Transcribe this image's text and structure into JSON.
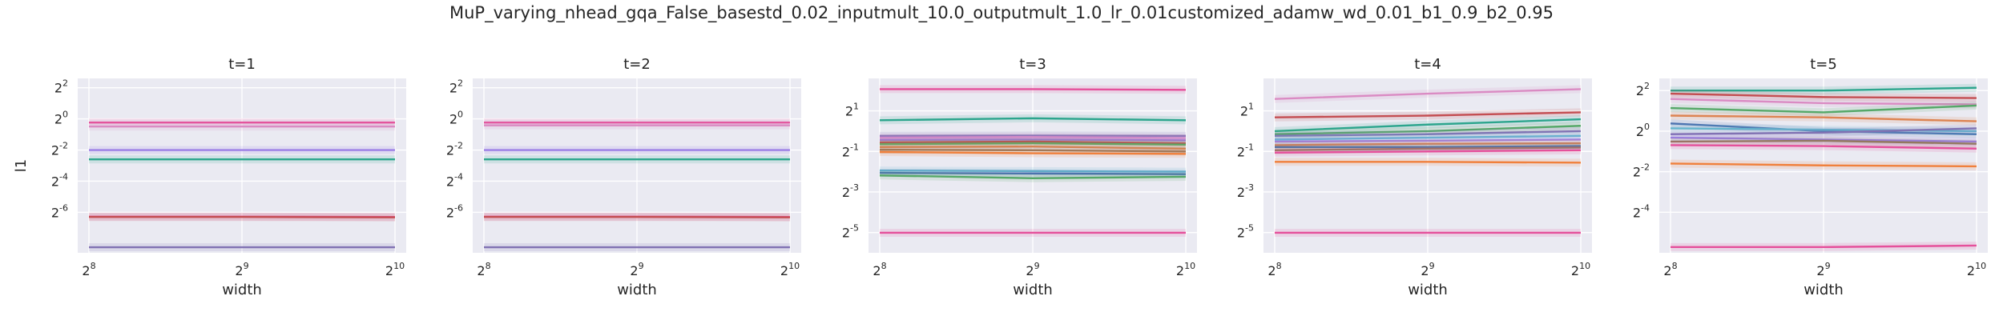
{
  "suptitle": "MuP_varying_nhead_gqa_False_basestd_0.02_inputmult_10.0_outputmult_1.0_lr_0.01customized_adamw_wd_0.01_b1_0.9_b2_0.95",
  "palette": [
    "#4c72b0",
    "#dd8452",
    "#55a868",
    "#c44e52",
    "#8172b3",
    "#937860",
    "#da8bc3",
    "#8c8c8c",
    "#ccb974",
    "#64b5cd",
    "#e5509b",
    "#2ca58d",
    "#9b7fe6",
    "#f0803c"
  ],
  "chart_data": [
    {
      "type": "line",
      "title": "t=1",
      "xlabel": "width",
      "ylabel": "l1",
      "xscale": "log2",
      "yscale": "log2",
      "x": [
        256,
        512,
        1024
      ],
      "xticks": [
        {
          "base": "2",
          "exp": "8"
        },
        {
          "base": "2",
          "exp": "9"
        },
        {
          "base": "2",
          "exp": "10"
        }
      ],
      "yticks": [
        {
          "base": "2",
          "exp": "2"
        },
        {
          "base": "2",
          "exp": "0"
        },
        {
          "base": "2",
          "exp": "-2"
        },
        {
          "base": "2",
          "exp": "-4"
        },
        {
          "base": "2",
          "exp": "-6"
        }
      ],
      "ytick_exps": [
        2,
        0,
        -2,
        -4,
        -6
      ],
      "ylim_log2": [
        -8.6,
        2.6
      ],
      "grid": true,
      "series": [
        {
          "color": "#e5509b",
          "values": [
            0.85,
            0.85,
            0.85
          ]
        },
        {
          "color": "#da8bc3",
          "values": [
            0.71,
            0.71,
            0.71
          ]
        },
        {
          "color": "#9b7fe6",
          "values": [
            0.25,
            0.25,
            0.25
          ]
        },
        {
          "color": "#2ca58d",
          "values": [
            0.165,
            0.165,
            0.165
          ]
        },
        {
          "color": "#e5509b",
          "values": [
            0.0129,
            0.0129,
            0.0127
          ]
        },
        {
          "color": "#c44e52",
          "values": [
            0.0127,
            0.0127,
            0.0125
          ]
        },
        {
          "color": "#8172b3",
          "values": [
            0.0033,
            0.0033,
            0.0033
          ]
        }
      ]
    },
    {
      "type": "line",
      "title": "t=2",
      "xlabel": "width",
      "ylabel": "",
      "xscale": "log2",
      "yscale": "log2",
      "x": [
        256,
        512,
        1024
      ],
      "xticks": [
        {
          "base": "2",
          "exp": "8"
        },
        {
          "base": "2",
          "exp": "9"
        },
        {
          "base": "2",
          "exp": "10"
        }
      ],
      "yticks": [
        {
          "base": "2",
          "exp": "2"
        },
        {
          "base": "2",
          "exp": "0"
        },
        {
          "base": "2",
          "exp": "-2"
        },
        {
          "base": "2",
          "exp": "-4"
        },
        {
          "base": "2",
          "exp": "-6"
        }
      ],
      "ytick_exps": [
        2,
        0,
        -2,
        -4,
        -6
      ],
      "ylim_log2": [
        -8.6,
        2.6
      ],
      "grid": true,
      "series": [
        {
          "color": "#e5509b",
          "values": [
            0.85,
            0.85,
            0.85
          ]
        },
        {
          "color": "#da8bc3",
          "values": [
            0.75,
            0.75,
            0.75
          ]
        },
        {
          "color": "#9b7fe6",
          "values": [
            0.25,
            0.25,
            0.25
          ]
        },
        {
          "color": "#2ca58d",
          "values": [
            0.165,
            0.165,
            0.165
          ]
        },
        {
          "color": "#e5509b",
          "values": [
            0.0129,
            0.0129,
            0.0127
          ]
        },
        {
          "color": "#c44e52",
          "values": [
            0.0127,
            0.0127,
            0.0125
          ]
        },
        {
          "color": "#8172b3",
          "values": [
            0.0033,
            0.0033,
            0.0033
          ]
        }
      ]
    },
    {
      "type": "line",
      "title": "t=3",
      "xlabel": "width",
      "ylabel": "",
      "xscale": "log2",
      "yscale": "log2",
      "x": [
        256,
        512,
        1024
      ],
      "xticks": [
        {
          "base": "2",
          "exp": "8"
        },
        {
          "base": "2",
          "exp": "9"
        },
        {
          "base": "2",
          "exp": "10"
        }
      ],
      "yticks": [
        {
          "base": "2",
          "exp": "1"
        },
        {
          "base": "2",
          "exp": "-1"
        },
        {
          "base": "2",
          "exp": "-3"
        },
        {
          "base": "2",
          "exp": "-5"
        }
      ],
      "ytick_exps": [
        1,
        -1,
        -3,
        -5
      ],
      "ylim_log2": [
        -6.0,
        2.6
      ],
      "grid": true,
      "series": [
        {
          "color": "#e5509b",
          "values": [
            4.2,
            4.2,
            4.1
          ]
        },
        {
          "color": "#2ca58d",
          "values": [
            1.45,
            1.55,
            1.45
          ]
        },
        {
          "color": "#8172b3",
          "values": [
            0.85,
            0.86,
            0.85
          ]
        },
        {
          "color": "#da8bc3",
          "values": [
            0.8,
            0.82,
            0.79
          ]
        },
        {
          "color": "#9b7fe6",
          "values": [
            0.74,
            0.75,
            0.73
          ]
        },
        {
          "color": "#c44e52",
          "values": [
            0.68,
            0.7,
            0.66
          ]
        },
        {
          "color": "#55a868",
          "values": [
            0.64,
            0.66,
            0.63
          ]
        },
        {
          "color": "#dd8452",
          "values": [
            0.58,
            0.59,
            0.55
          ]
        },
        {
          "color": "#937860",
          "values": [
            0.53,
            0.52,
            0.5
          ]
        },
        {
          "color": "#f0803c",
          "values": [
            0.49,
            0.47,
            0.46
          ]
        },
        {
          "color": "#64b5cd",
          "values": [
            0.26,
            0.255,
            0.25
          ]
        },
        {
          "color": "#4c72b0",
          "values": [
            0.24,
            0.235,
            0.23
          ]
        },
        {
          "color": "#55a868",
          "values": [
            0.22,
            0.2,
            0.21
          ]
        },
        {
          "color": "#e5509b",
          "values": [
            0.031,
            0.031,
            0.031
          ]
        }
      ]
    },
    {
      "type": "line",
      "title": "t=4",
      "xlabel": "width",
      "ylabel": "",
      "xscale": "log2",
      "yscale": "log2",
      "x": [
        256,
        512,
        1024
      ],
      "xticks": [
        {
          "base": "2",
          "exp": "8"
        },
        {
          "base": "2",
          "exp": "9"
        },
        {
          "base": "2",
          "exp": "10"
        }
      ],
      "yticks": [
        {
          "base": "2",
          "exp": "1"
        },
        {
          "base": "2",
          "exp": "-1"
        },
        {
          "base": "2",
          "exp": "-3"
        },
        {
          "base": "2",
          "exp": "-5"
        }
      ],
      "ytick_exps": [
        1,
        -1,
        -3,
        -5
      ],
      "ylim_log2": [
        -6.0,
        2.6
      ],
      "grid": true,
      "series": [
        {
          "color": "#da8bc3",
          "values": [
            3.0,
            3.6,
            4.2
          ]
        },
        {
          "color": "#c44e52",
          "values": [
            1.6,
            1.7,
            1.9
          ]
        },
        {
          "color": "#2ca58d",
          "values": [
            1.0,
            1.25,
            1.5
          ]
        },
        {
          "color": "#55a868",
          "values": [
            0.9,
            1.0,
            1.2
          ]
        },
        {
          "color": "#8172b3",
          "values": [
            0.85,
            0.9,
            1.0
          ]
        },
        {
          "color": "#64b5cd",
          "values": [
            0.75,
            0.8,
            0.85
          ]
        },
        {
          "color": "#9b7fe6",
          "values": [
            0.7,
            0.72,
            0.75
          ]
        },
        {
          "color": "#dd8452",
          "values": [
            0.62,
            0.65,
            0.66
          ]
        },
        {
          "color": "#4c72b0",
          "values": [
            0.58,
            0.58,
            0.6
          ]
        },
        {
          "color": "#937860",
          "values": [
            0.52,
            0.55,
            0.57
          ]
        },
        {
          "color": "#e5509b",
          "values": [
            0.48,
            0.5,
            0.52
          ]
        },
        {
          "color": "#f0803c",
          "values": [
            0.35,
            0.35,
            0.34
          ]
        },
        {
          "color": "#e5509b",
          "values": [
            0.031,
            0.031,
            0.031
          ]
        }
      ]
    },
    {
      "type": "line",
      "title": "t=5",
      "xlabel": "width",
      "ylabel": "",
      "xscale": "log2",
      "yscale": "log2",
      "x": [
        256,
        512,
        1024
      ],
      "xticks": [
        {
          "base": "2",
          "exp": "8"
        },
        {
          "base": "2",
          "exp": "9"
        },
        {
          "base": "2",
          "exp": "10"
        }
      ],
      "yticks": [
        {
          "base": "2",
          "exp": "2"
        },
        {
          "base": "2",
          "exp": "0"
        },
        {
          "base": "2",
          "exp": "-2"
        },
        {
          "base": "2",
          "exp": "-4"
        }
      ],
      "ytick_exps": [
        2,
        0,
        -2,
        -4
      ],
      "ylim_log2": [
        -6.0,
        2.6
      ],
      "grid": true,
      "series": [
        {
          "color": "#2ca58d",
          "values": [
            4.0,
            4.0,
            4.4
          ]
        },
        {
          "color": "#c44e52",
          "values": [
            3.6,
            3.2,
            3.1
          ]
        },
        {
          "color": "#da8bc3",
          "values": [
            3.0,
            2.6,
            2.5
          ]
        },
        {
          "color": "#55a868",
          "values": [
            2.2,
            1.9,
            2.4
          ]
        },
        {
          "color": "#dd8452",
          "values": [
            1.7,
            1.6,
            1.4
          ]
        },
        {
          "color": "#4c72b0",
          "values": [
            1.3,
            1.0,
            0.9
          ]
        },
        {
          "color": "#64b5cd",
          "values": [
            1.1,
            1.05,
            1.0
          ]
        },
        {
          "color": "#8172b3",
          "values": [
            0.9,
            0.95,
            1.1
          ]
        },
        {
          "color": "#9b7fe6",
          "values": [
            0.8,
            0.75,
            0.7
          ]
        },
        {
          "color": "#937860",
          "values": [
            0.7,
            0.72,
            0.65
          ]
        },
        {
          "color": "#e5509b",
          "values": [
            0.62,
            0.6,
            0.55
          ]
        },
        {
          "color": "#f0803c",
          "values": [
            0.33,
            0.31,
            0.3
          ]
        },
        {
          "color": "#e5509b",
          "values": [
            0.019,
            0.019,
            0.02
          ]
        }
      ]
    }
  ]
}
